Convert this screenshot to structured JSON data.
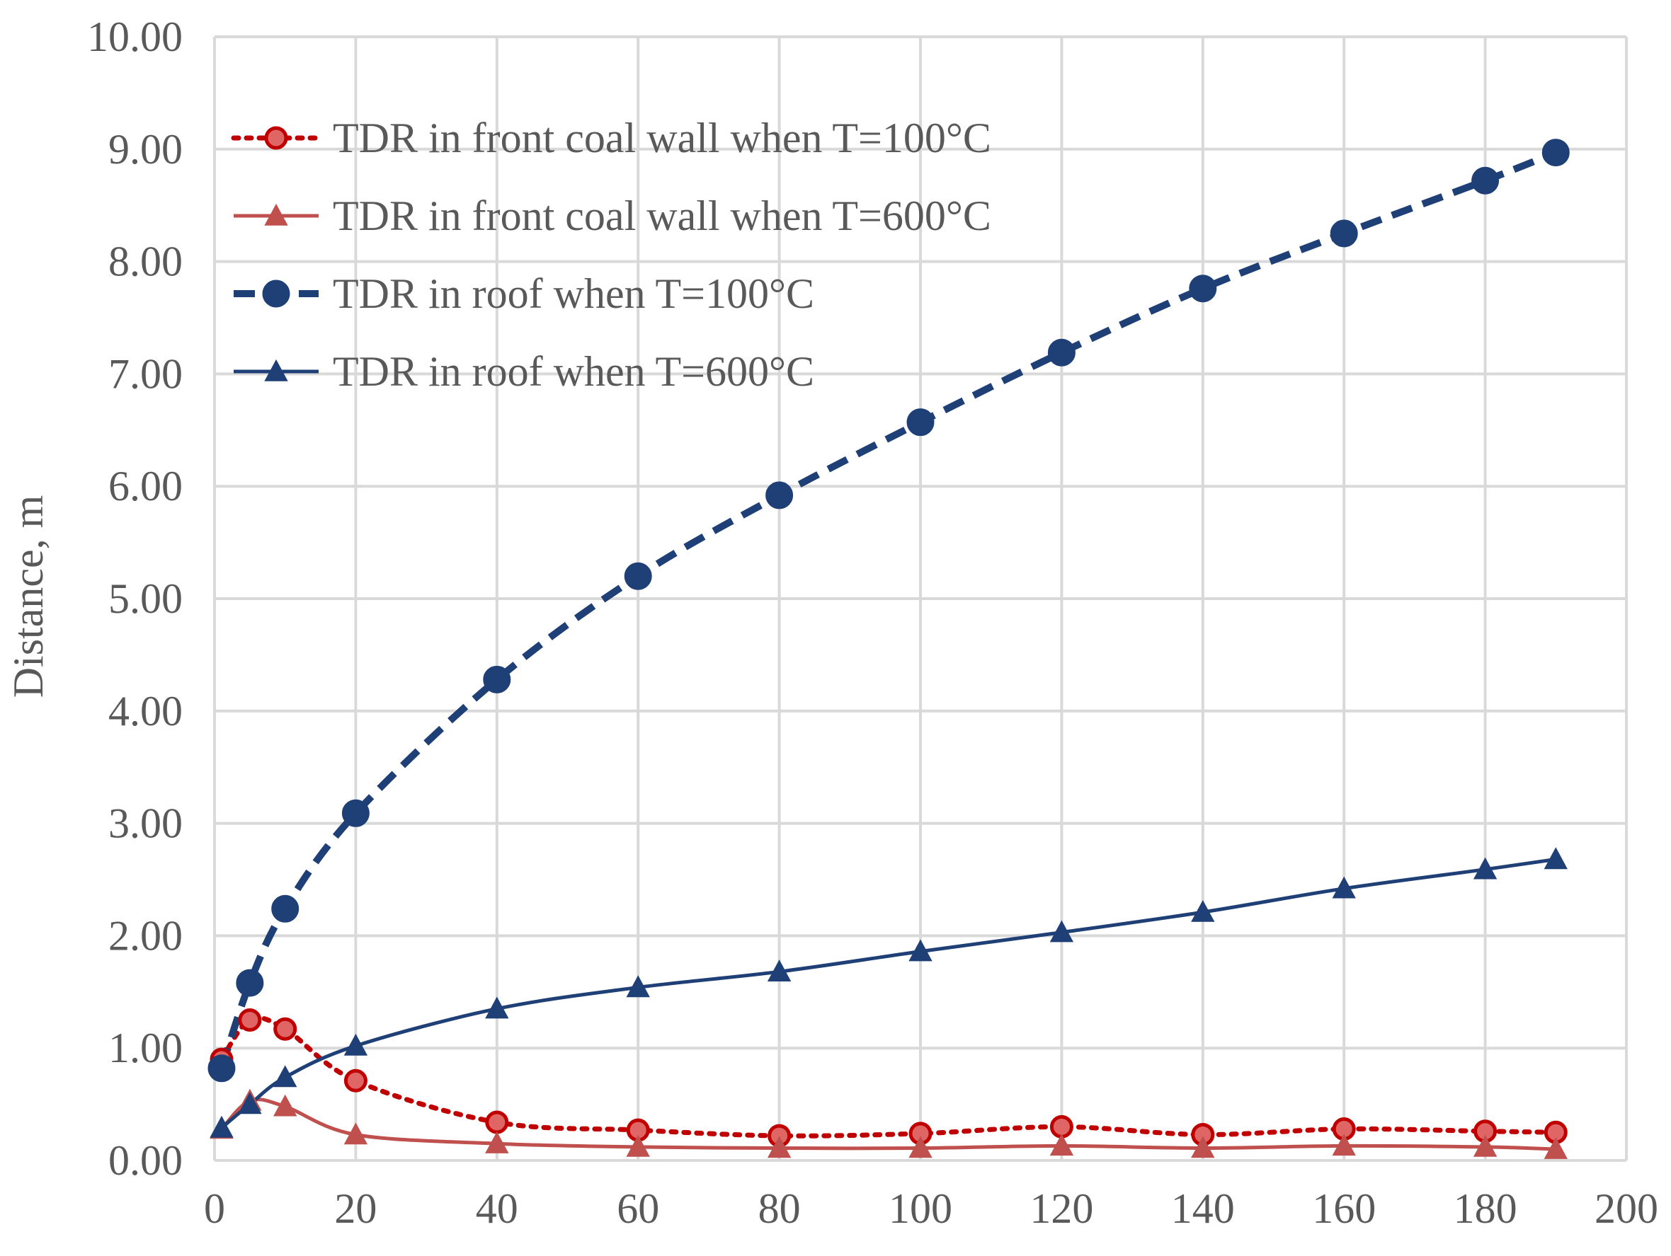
{
  "chart_data": {
    "type": "line",
    "title": "",
    "xlabel": "",
    "ylabel": "Distance, m",
    "xlim": [
      0,
      200
    ],
    "ylim": [
      0,
      10
    ],
    "x_ticks": [
      0,
      20,
      40,
      60,
      80,
      100,
      120,
      140,
      160,
      180,
      200
    ],
    "y_ticks": [
      0,
      1,
      2,
      3,
      4,
      5,
      6,
      7,
      8,
      9,
      10
    ],
    "x_tick_labels": [
      "0",
      "20",
      "40",
      "60",
      "80",
      "100",
      "120",
      "140",
      "160",
      "180",
      "200"
    ],
    "y_tick_labels": [
      "0.00",
      "1.00",
      "2.00",
      "3.00",
      "4.00",
      "5.00",
      "6.00",
      "7.00",
      "8.00",
      "9.00",
      "10.00"
    ],
    "grid": true,
    "legend_position": "top-left",
    "x": [
      1,
      5,
      10,
      20,
      40,
      60,
      80,
      100,
      120,
      140,
      160,
      180,
      190
    ],
    "series": [
      {
        "name": "TDR in front coal wall when T=100°C",
        "color": "#C00000",
        "line_style": "dotted",
        "marker": "circle",
        "values": [
          0.9,
          1.25,
          1.17,
          0.71,
          0.34,
          0.27,
          0.22,
          0.24,
          0.3,
          0.23,
          0.28,
          0.26,
          0.25
        ]
      },
      {
        "name": "TDR in front coal wall when T=600°C",
        "color": "#C0504D",
        "line_style": "solid",
        "marker": "triangle",
        "values": [
          0.28,
          0.53,
          0.48,
          0.23,
          0.15,
          0.12,
          0.11,
          0.11,
          0.13,
          0.11,
          0.13,
          0.12,
          0.1
        ]
      },
      {
        "name": "TDR in roof when T=100°C",
        "color": "#1F3F77",
        "line_style": "dashed",
        "marker": "circle",
        "values": [
          0.82,
          1.58,
          2.24,
          3.09,
          4.28,
          5.2,
          5.92,
          6.57,
          7.19,
          7.76,
          8.25,
          8.72,
          8.97
        ]
      },
      {
        "name": "TDR in roof when T=600°C",
        "color": "#1F3F77",
        "line_style": "solid",
        "marker": "triangle",
        "values": [
          0.29,
          0.5,
          0.74,
          1.02,
          1.35,
          1.54,
          1.68,
          1.86,
          2.03,
          2.21,
          2.42,
          2.59,
          2.68
        ]
      }
    ]
  }
}
